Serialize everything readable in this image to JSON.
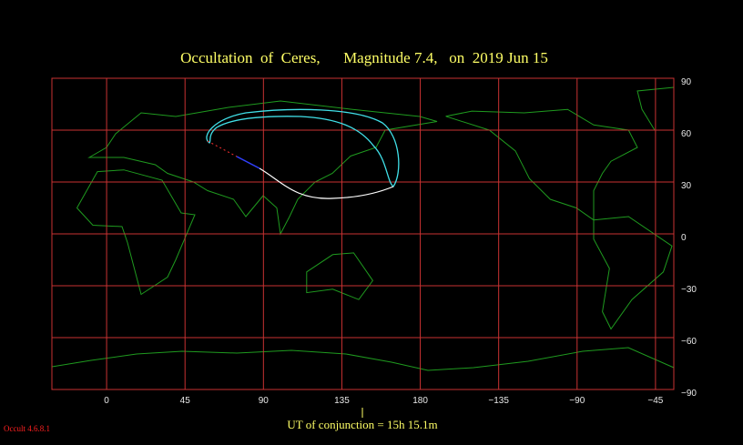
{
  "title": "Occultation  of  Ceres,      Magnitude 7.4,   on  2019 Jun 15",
  "map": {
    "xlim": [
      -31.4,
      325.5
    ],
    "ylim": [
      -90,
      90
    ],
    "longitude_ticks": [
      0,
      45,
      90,
      135,
      180,
      {
        "value": -135,
        "label": "−135"
      },
      {
        "value": -90,
        "label": "−90"
      },
      {
        "value": -45,
        "label": "−45"
      }
    ],
    "latitude_ticks": [
      90,
      60,
      30,
      0,
      {
        "value": -30,
        "label": "−30"
      },
      {
        "value": -60,
        "label": "−60"
      },
      {
        "value": -90,
        "label": "−90"
      }
    ]
  },
  "footer": "UT of conjunction = 15h 15.1m",
  "version": "Occult 4.6.8.1"
}
